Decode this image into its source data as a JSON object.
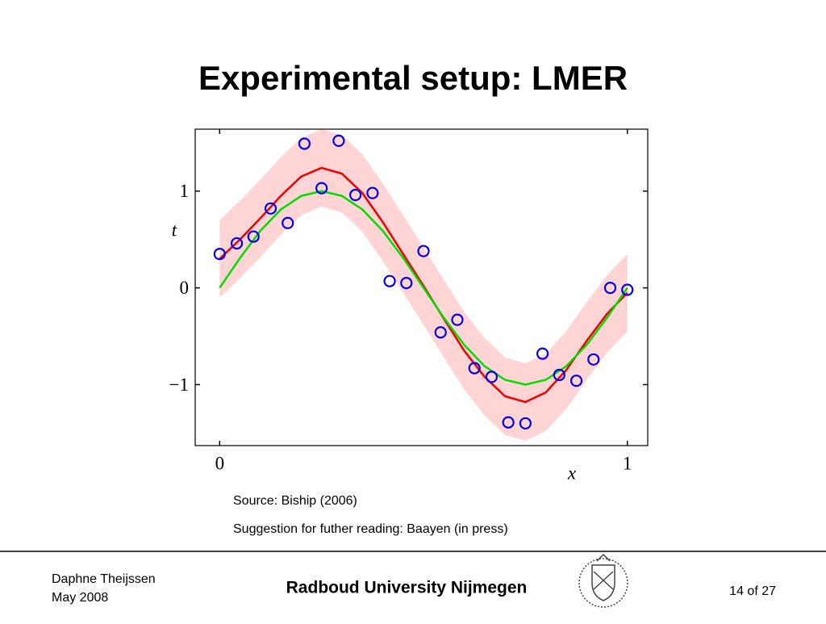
{
  "title": "Experimental setup: LMER",
  "chart_data": {
    "type": "line",
    "xlabel": "x",
    "ylabel": "t",
    "xlim": [
      -0.06,
      1.05
    ],
    "ylim": [
      -1.63,
      1.64
    ],
    "xticks": [
      0,
      1
    ],
    "yticks": [
      {
        "value": -1,
        "label": "−1"
      },
      0,
      1
    ],
    "x": [
      0,
      0.05,
      0.1,
      0.15,
      0.2,
      0.25,
      0.3,
      0.35,
      0.4,
      0.45,
      0.5,
      0.55,
      0.6,
      0.65,
      0.7,
      0.75,
      0.8,
      0.85,
      0.9,
      0.95,
      1
    ],
    "band": {
      "color": "#ffd4d4",
      "upper": [
        0.7,
        0.9,
        1.12,
        1.35,
        1.55,
        1.64,
        1.58,
        1.38,
        1.08,
        0.75,
        0.42,
        0.08,
        -0.25,
        -0.52,
        -0.72,
        -0.78,
        -0.68,
        -0.45,
        -0.15,
        0.13,
        0.35
      ],
      "lower": [
        -0.1,
        0.1,
        0.32,
        0.55,
        0.75,
        0.84,
        0.78,
        0.58,
        0.28,
        -0.05,
        -0.38,
        -0.72,
        -1.05,
        -1.32,
        -1.52,
        -1.58,
        -1.48,
        -1.25,
        -0.95,
        -0.67,
        -0.45
      ]
    },
    "series": [
      {
        "color": "#ee0000",
        "values": [
          0.3,
          0.5,
          0.72,
          0.95,
          1.15,
          1.24,
          1.18,
          0.98,
          0.68,
          0.35,
          0.02,
          -0.32,
          -0.65,
          -0.92,
          -1.12,
          -1.18,
          -1.08,
          -0.85,
          -0.55,
          -0.27,
          -0.05
        ]
      },
      {
        "color": "#00dd00",
        "values": [
          0,
          0.31,
          0.59,
          0.81,
          0.95,
          1,
          0.95,
          0.81,
          0.59,
          0.31,
          0,
          -0.31,
          -0.59,
          -0.81,
          -0.95,
          -1,
          -0.95,
          -0.81,
          -0.59,
          -0.31,
          0
        ]
      }
    ],
    "points": {
      "color": "#0000ee",
      "x": [
        0,
        0.042,
        0.083,
        0.125,
        0.167,
        0.208,
        0.25,
        0.292,
        0.333,
        0.375,
        0.417,
        0.458,
        0.5,
        0.542,
        0.583,
        0.625,
        0.667,
        0.708,
        0.75,
        0.792,
        0.833,
        0.875,
        0.917,
        0.958,
        1
      ],
      "values": [
        0.35,
        0.46,
        0.53,
        0.82,
        0.67,
        1.49,
        1.03,
        1.52,
        0.96,
        0.98,
        0.07,
        0.05,
        0.38,
        -0.46,
        -0.33,
        -0.83,
        -0.92,
        -1.39,
        -1.4,
        -0.68,
        -0.9,
        -0.96,
        -0.74,
        0.0,
        -0.02
      ]
    }
  },
  "source": "Source: Biship (2006)",
  "suggestion": "Suggestion for futher reading: Baayen (in press)",
  "footer": {
    "author": "Daphne Theijssen",
    "date": "May 2008",
    "university": "Radboud University Nijmegen",
    "page": "14 of 27"
  }
}
